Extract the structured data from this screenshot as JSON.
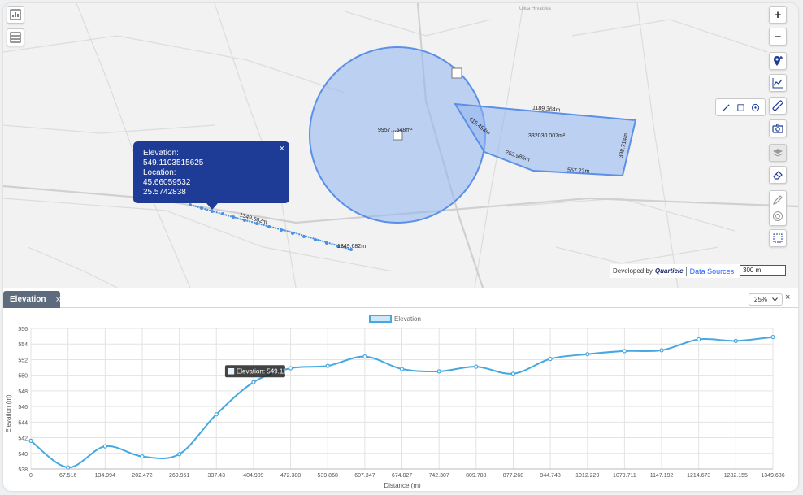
{
  "map": {
    "side_buttons": {
      "chart": "chart-icon",
      "layers_list": "list-icon"
    },
    "zoom_in": "+",
    "zoom_out": "−",
    "tools": [
      "location-pin-icon",
      "line-chart-icon",
      "ruler-icon",
      "camera-icon",
      "layers-icon",
      "eraser-icon",
      "pen-icon",
      "target-icon",
      "polygon-icon"
    ],
    "draw_tools": [
      "line-icon",
      "polygon-icon",
      "circle-icon"
    ],
    "labels": {
      "circle_area": "9957…548m²",
      "poly_area": "332030.007m²",
      "poly_top": "1189.364m",
      "poly_left": "415.453m",
      "poly_bottom_left": "253.985m",
      "poly_bottom": "557.23m",
      "poly_right": "398.714m",
      "line_mid": "1349.682m",
      "line_end": "1349.682m",
      "street_top": "Ulica Hrvatska"
    },
    "popup": {
      "title": "Elevation:",
      "elevation": "549.1103515625",
      "location_label": "Location:",
      "lat": "45.66059532",
      "lon": "25.5742838",
      "close": "×"
    },
    "attribution": {
      "developed_by": "Developed by",
      "brand": "Quarticle",
      "sources": "Data Sources"
    },
    "scale": "300 m",
    "accent": "#1e3c96",
    "shape_fill": "#8fb4f0",
    "shape_stroke": "#5b8fe8"
  },
  "panel": {
    "tab_label": "Elevation",
    "tab_close": "×",
    "zoom_value": "25%",
    "close": "×"
  },
  "chart_data": {
    "type": "line",
    "title": "",
    "legend": [
      "Elevation"
    ],
    "legend_position": "top-center",
    "xlabel": "Distance (m)",
    "ylabel": "Elevation (m)",
    "ylim": [
      538,
      556
    ],
    "yticks": [
      538,
      540,
      542,
      544,
      546,
      548,
      550,
      552,
      554,
      556
    ],
    "xticks": [
      "0",
      "67.516",
      "134.994",
      "202.472",
      "269.951",
      "337.43",
      "404.909",
      "472.388",
      "539.868",
      "607.347",
      "674.827",
      "742.307",
      "809.788",
      "877.268",
      "944.748",
      "1012.229",
      "1079.711",
      "1147.192",
      "1214.673",
      "1282.155",
      "1349.636"
    ],
    "series": [
      {
        "name": "Elevation",
        "color": "#45a8e0",
        "x": [
          0,
          67.516,
          134.994,
          202.472,
          269.951,
          337.43,
          404.909,
          472.388,
          539.868,
          607.347,
          674.827,
          742.307,
          809.788,
          877.268,
          944.748,
          1012.229,
          1079.711,
          1147.192,
          1214.673,
          1282.155,
          1349.636
        ],
        "values": [
          541.6,
          538.2,
          540.9,
          539.6,
          539.9,
          545.0,
          549.11,
          550.9,
          551.2,
          552.4,
          550.8,
          550.5,
          551.1,
          550.2,
          552.1,
          552.7,
          553.1,
          553.2,
          554.6,
          554.4,
          554.9
        ]
      }
    ],
    "tooltip": {
      "label": "Elevation: 549.11",
      "index": 6
    },
    "grid": true
  }
}
